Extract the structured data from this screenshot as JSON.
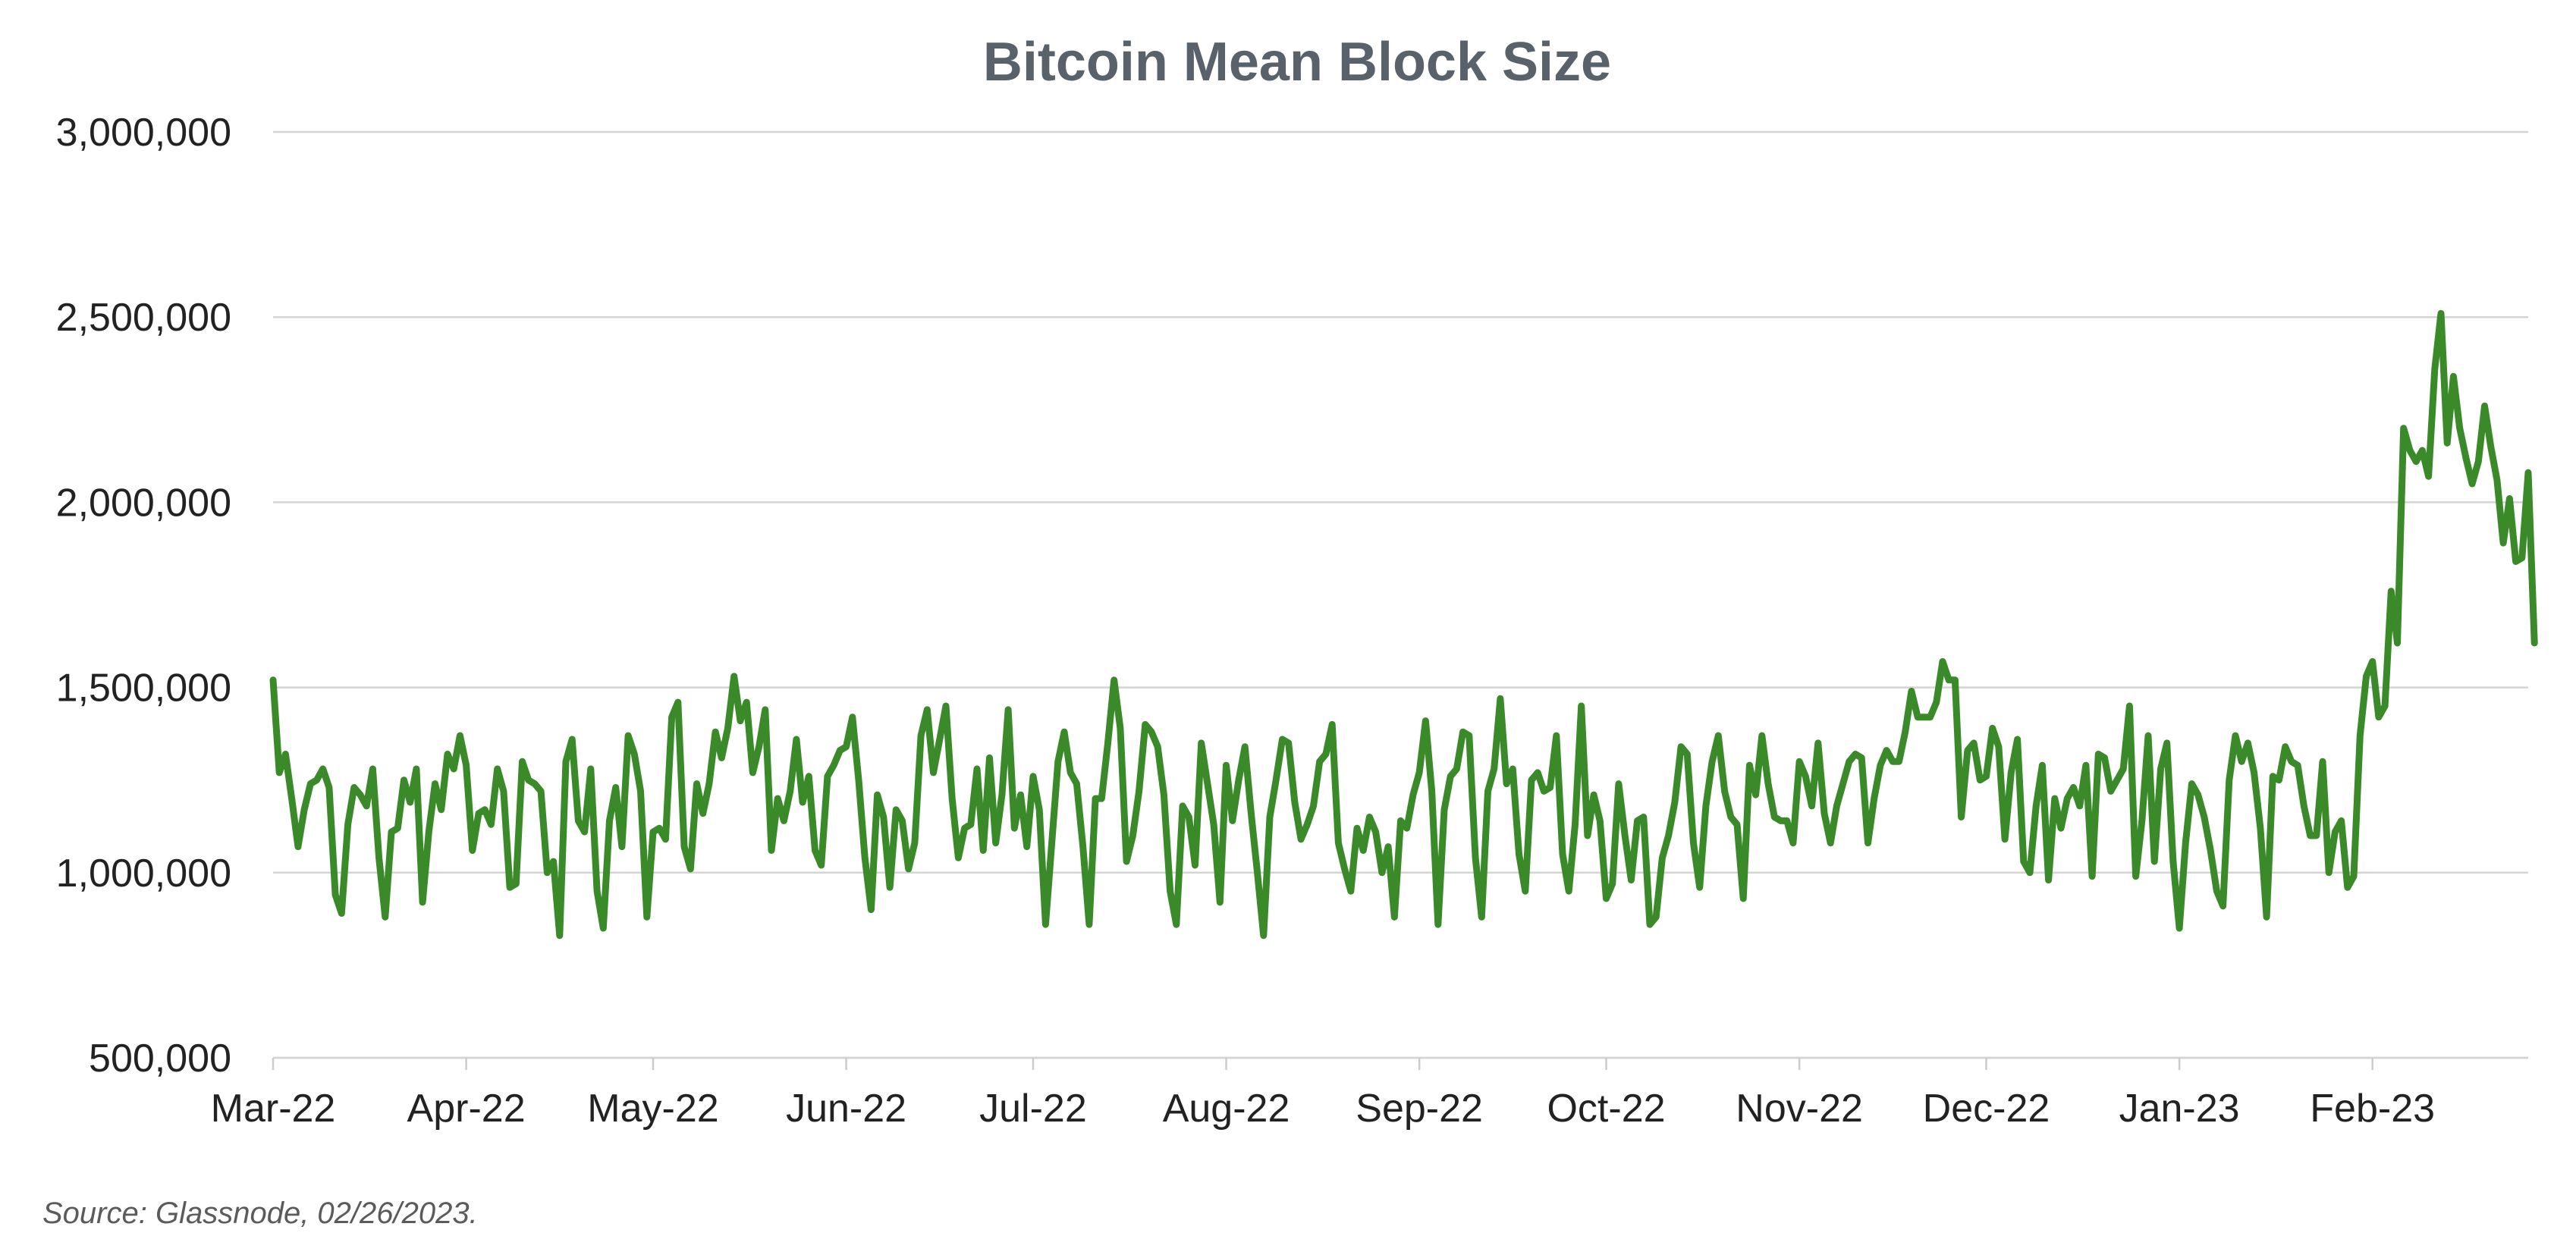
{
  "chart_data": {
    "type": "line",
    "title": "Bitcoin Mean Block Size",
    "xlabel": "",
    "ylabel": "",
    "ylim": [
      500000,
      3000000
    ],
    "y_ticks": [
      500000,
      1000000,
      1500000,
      2000000,
      2500000,
      3000000
    ],
    "y_tick_labels": [
      "500,000",
      "1,000,000",
      "1,500,000",
      "2,000,000",
      "2,500,000",
      "3,000,000"
    ],
    "x_tick_labels": [
      "Mar-22",
      "Apr-22",
      "May-22",
      "Jun-22",
      "Jul-22",
      "Aug-22",
      "Sep-22",
      "Oct-22",
      "Nov-22",
      "Dec-22",
      "Jan-23",
      "Feb-23"
    ],
    "x_tick_dates": [
      "2022-03-01",
      "2022-04-01",
      "2022-05-01",
      "2022-06-01",
      "2022-07-01",
      "2022-08-01",
      "2022-09-01",
      "2022-10-01",
      "2022-11-01",
      "2022-12-01",
      "2023-01-01",
      "2023-02-01"
    ],
    "xlim": [
      "2022-03-01",
      "2023-02-26"
    ],
    "grid": true,
    "legend": "none",
    "color": "#3a8a2a",
    "series": [
      {
        "start_date": "2022-03-01",
        "frequency": "daily",
        "values": [
          1520000,
          1270000,
          1320000,
          1200000,
          1070000,
          1170000,
          1240000,
          1250000,
          1280000,
          1230000,
          940000,
          890000,
          1130000,
          1230000,
          1210000,
          1180000,
          1280000,
          1040000,
          880000,
          1110000,
          1120000,
          1250000,
          1190000,
          1280000,
          920000,
          1110000,
          1240000,
          1170000,
          1320000,
          1280000,
          1370000,
          1290000,
          1060000,
          1160000,
          1170000,
          1130000,
          1280000,
          1220000,
          960000,
          970000,
          1300000,
          1250000,
          1240000,
          1220000,
          1000000,
          1030000,
          830000,
          1300000,
          1360000,
          1140000,
          1110000,
          1280000,
          950000,
          850000,
          1140000,
          1230000,
          1070000,
          1370000,
          1320000,
          1220000,
          880000,
          1110000,
          1120000,
          1090000,
          1420000,
          1460000,
          1070000,
          1010000,
          1240000,
          1160000,
          1240000,
          1380000,
          1310000,
          1390000,
          1530000,
          1410000,
          1460000,
          1270000,
          1340000,
          1440000,
          1060000,
          1200000,
          1140000,
          1220000,
          1360000,
          1190000,
          1260000,
          1060000,
          1020000,
          1260000,
          1290000,
          1330000,
          1340000,
          1420000,
          1250000,
          1040000,
          900000,
          1210000,
          1150000,
          960000,
          1170000,
          1140000,
          1010000,
          1080000,
          1370000,
          1440000,
          1270000,
          1360000,
          1450000,
          1200000,
          1040000,
          1120000,
          1130000,
          1280000,
          1060000,
          1310000,
          1080000,
          1210000,
          1440000,
          1120000,
          1210000,
          1070000,
          1260000,
          1170000,
          860000,
          1080000,
          1300000,
          1380000,
          1270000,
          1240000,
          1070000,
          860000,
          1200000,
          1200000,
          1350000,
          1520000,
          1390000,
          1030000,
          1100000,
          1220000,
          1400000,
          1380000,
          1340000,
          1210000,
          950000,
          860000,
          1180000,
          1150000,
          1020000,
          1350000,
          1240000,
          1130000,
          920000,
          1290000,
          1140000,
          1250000,
          1340000,
          1160000,
          1000000,
          830000,
          1150000,
          1250000,
          1360000,
          1350000,
          1190000,
          1090000,
          1130000,
          1180000,
          1300000,
          1320000,
          1400000,
          1080000,
          1010000,
          950000,
          1120000,
          1060000,
          1150000,
          1110000,
          1000000,
          1070000,
          880000,
          1140000,
          1120000,
          1210000,
          1270000,
          1410000,
          1220000,
          860000,
          1170000,
          1260000,
          1280000,
          1380000,
          1370000,
          1040000,
          880000,
          1220000,
          1280000,
          1470000,
          1240000,
          1280000,
          1050000,
          950000,
          1250000,
          1270000,
          1220000,
          1230000,
          1370000,
          1050000,
          950000,
          1130000,
          1450000,
          1100000,
          1210000,
          1140000,
          930000,
          970000,
          1240000,
          1100000,
          980000,
          1140000,
          1150000,
          860000,
          880000,
          1040000,
          1100000,
          1190000,
          1340000,
          1320000,
          1080000,
          960000,
          1180000,
          1300000,
          1370000,
          1220000,
          1150000,
          1130000,
          930000,
          1290000,
          1210000,
          1370000,
          1240000,
          1150000,
          1140000,
          1140000,
          1080000,
          1300000,
          1260000,
          1180000,
          1350000,
          1160000,
          1080000,
          1180000,
          1240000,
          1300000,
          1320000,
          1310000,
          1080000,
          1200000,
          1290000,
          1330000,
          1300000,
          1300000,
          1380000,
          1490000,
          1420000,
          1420000,
          1420000,
          1460000,
          1570000,
          1520000,
          1520000,
          1150000,
          1330000,
          1350000,
          1250000,
          1260000,
          1390000,
          1340000,
          1090000,
          1270000,
          1360000,
          1030000,
          1000000,
          1180000,
          1290000,
          980000,
          1200000,
          1120000,
          1200000,
          1230000,
          1180000,
          1290000,
          990000,
          1320000,
          1310000,
          1220000,
          1250000,
          1280000,
          1450000,
          990000,
          1140000,
          1370000,
          1030000,
          1280000,
          1350000,
          1030000,
          850000,
          1080000,
          1240000,
          1210000,
          1150000,
          1060000,
          950000,
          910000,
          1250000,
          1370000,
          1300000,
          1350000,
          1270000,
          1120000,
          880000,
          1260000,
          1250000,
          1340000,
          1300000,
          1290000,
          1180000,
          1100000,
          1100000,
          1300000,
          1000000,
          1110000,
          1140000,
          960000,
          990000,
          1370000,
          1530000,
          1570000,
          1420000,
          1450000,
          1760000,
          1620000,
          2200000,
          2140000,
          2110000,
          2140000,
          2070000,
          2360000,
          2510000,
          2160000,
          2340000,
          2200000,
          2120000,
          2050000,
          2110000,
          2260000,
          2150000,
          2060000,
          1890000,
          2010000,
          1840000,
          1850000,
          2080000,
          1620000
        ]
      }
    ]
  },
  "footer": {
    "source": "Source: Glassnode, 02/26/2023."
  }
}
